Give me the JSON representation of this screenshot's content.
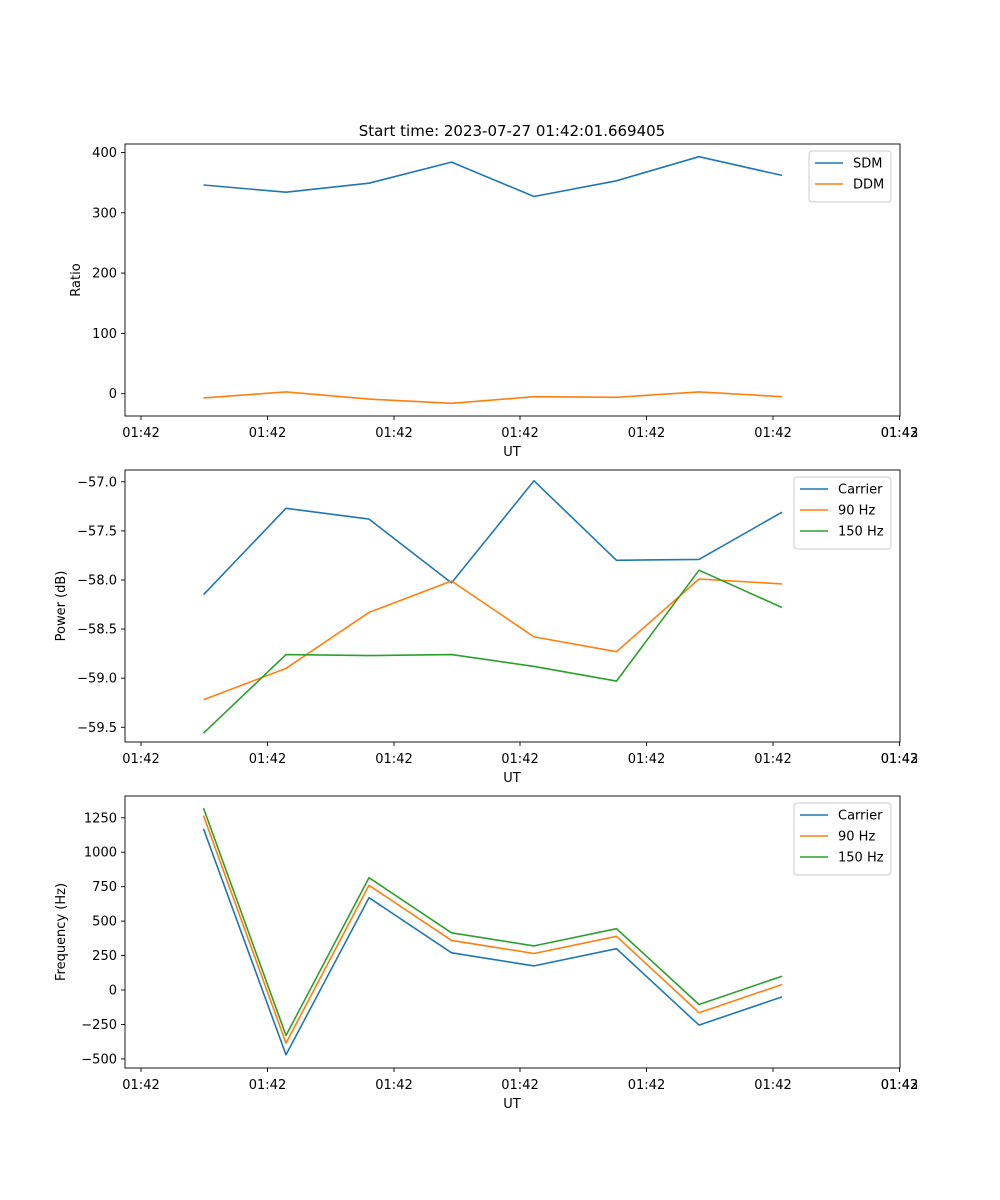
{
  "title": "Start time: 2023-07-27 01:42:01.669405",
  "chart_data": [
    {
      "type": "line",
      "xlabel": "UT",
      "ylabel": "Ratio",
      "x_tick_labels": [
        "01:42",
        "01:42",
        "01:42",
        "01:42",
        "01:42",
        "01:42",
        "01:42"
      ],
      "x_tick_last_label": "01:43",
      "y_ticks": [
        0,
        100,
        200,
        300,
        400
      ],
      "y_tick_labels": [
        "0",
        "100",
        "200",
        "300",
        "400"
      ],
      "ylim": [
        -37,
        414
      ],
      "legend_position": "top-right",
      "series": [
        {
          "name": "SDM",
          "color": "#1f77b4",
          "values": [
            346,
            334,
            349,
            384,
            327,
            353,
            393,
            362
          ]
        },
        {
          "name": "DDM",
          "color": "#ff7f0e",
          "values": [
            -7,
            3,
            -9,
            -16,
            -5,
            -6,
            3,
            -5
          ]
        }
      ]
    },
    {
      "type": "line",
      "xlabel": "UT",
      "ylabel": "Power (dB)",
      "x_tick_labels": [
        "01:42",
        "01:42",
        "01:42",
        "01:42",
        "01:42",
        "01:42",
        "01:42"
      ],
      "x_tick_last_label": "01:43",
      "y_ticks": [
        -59.5,
        -59.0,
        -58.5,
        -58.0,
        -57.5,
        -57.0
      ],
      "y_tick_labels": [
        "−59.5",
        "−59.0",
        "−58.5",
        "−58.0",
        "−57.5",
        "−57.0"
      ],
      "ylim": [
        -59.65,
        -56.88
      ],
      "legend_position": "top-right",
      "series": [
        {
          "name": "Carrier",
          "color": "#1f77b4",
          "values": [
            -58.15,
            -57.27,
            -57.38,
            -58.03,
            -56.99,
            -57.8,
            -57.79,
            -57.31
          ]
        },
        {
          "name": "90 Hz",
          "color": "#ff7f0e",
          "values": [
            -59.22,
            -58.9,
            -58.33,
            -58.01,
            -58.58,
            -58.73,
            -57.99,
            -58.04
          ]
        },
        {
          "name": "150 Hz",
          "color": "#2ca02c",
          "values": [
            -59.56,
            -58.76,
            -58.77,
            -58.76,
            -58.88,
            -59.03,
            -57.9,
            -58.28
          ]
        }
      ]
    },
    {
      "type": "line",
      "xlabel": "UT",
      "ylabel": "Frequency (Hz)",
      "x_tick_labels": [
        "01:42",
        "01:42",
        "01:42",
        "01:42",
        "01:42",
        "01:42",
        "01:42"
      ],
      "x_tick_last_label": "01:43",
      "y_ticks": [
        -500,
        -250,
        0,
        250,
        500,
        750,
        1000,
        1250
      ],
      "y_tick_labels": [
        "−500",
        "−250",
        "0",
        "250",
        "500",
        "750",
        "1000",
        "1250"
      ],
      "ylim": [
        -566,
        1408
      ],
      "legend_position": "top-right",
      "series": [
        {
          "name": "Carrier",
          "color": "#1f77b4",
          "values": [
            1170,
            -470,
            670,
            270,
            175,
            300,
            -255,
            -50
          ]
        },
        {
          "name": "90 Hz",
          "color": "#ff7f0e",
          "values": [
            1265,
            -385,
            760,
            360,
            265,
            390,
            -165,
            40
          ]
        },
        {
          "name": "150 Hz",
          "color": "#2ca02c",
          "values": [
            1320,
            -330,
            815,
            415,
            320,
            445,
            -105,
            100
          ]
        }
      ]
    }
  ]
}
